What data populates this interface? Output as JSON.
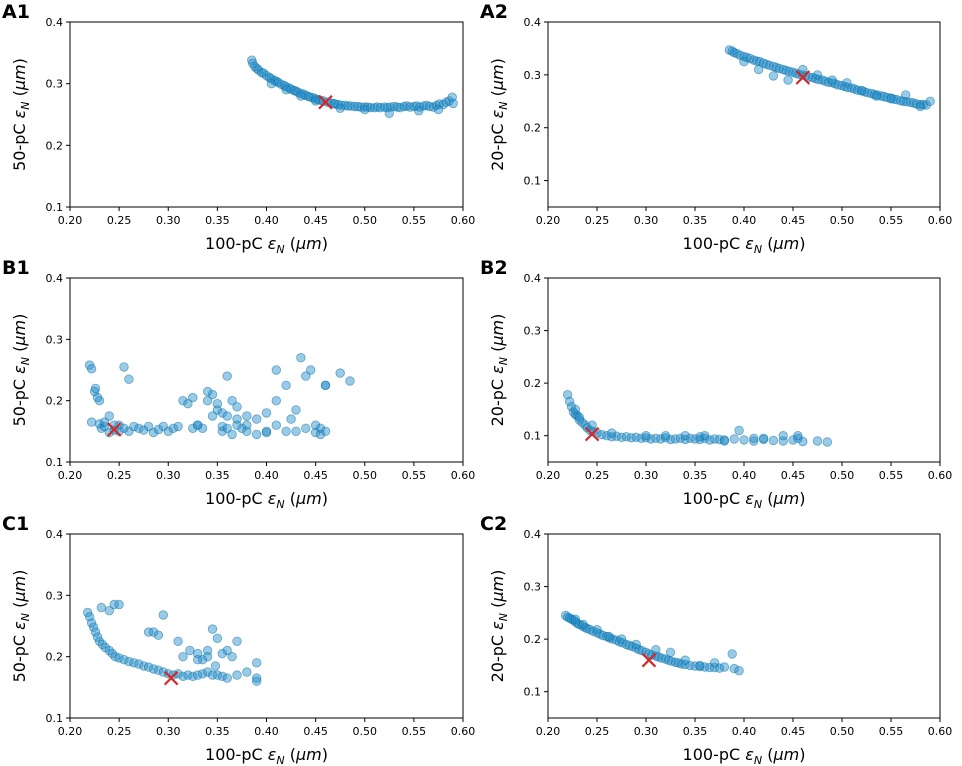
{
  "figure": {
    "marker_color": "#1f8bc7",
    "marker_edge": "#0a6fa8",
    "optimum_color": "#d62728"
  },
  "chart_data": [
    {
      "panel": "A1",
      "type": "scatter",
      "xlabel": "100-pC ε_N (μm)",
      "ylabel": "50-pC ε_N (μm)",
      "xlim": [
        0.2,
        0.6
      ],
      "ylim": [
        0.1,
        0.4
      ],
      "xticks": [
        "0.20",
        "0.25",
        "0.30",
        "0.35",
        "0.40",
        "0.45",
        "0.50",
        "0.55",
        "0.60"
      ],
      "yticks": [
        "0.1",
        "0.2",
        "0.3",
        "0.4"
      ],
      "optimum": [
        0.46,
        0.27
      ],
      "x": [
        0.385,
        0.386,
        0.388,
        0.39,
        0.392,
        0.395,
        0.397,
        0.4,
        0.403,
        0.405,
        0.408,
        0.41,
        0.412,
        0.415,
        0.418,
        0.42,
        0.423,
        0.425,
        0.428,
        0.43,
        0.432,
        0.435,
        0.438,
        0.44,
        0.443,
        0.445,
        0.448,
        0.45,
        0.453,
        0.455,
        0.458,
        0.462,
        0.465,
        0.468,
        0.47,
        0.473,
        0.476,
        0.48,
        0.483,
        0.486,
        0.49,
        0.493,
        0.496,
        0.5,
        0.503,
        0.506,
        0.51,
        0.513,
        0.516,
        0.52,
        0.523,
        0.526,
        0.53,
        0.533,
        0.536,
        0.54,
        0.543,
        0.546,
        0.55,
        0.553,
        0.556,
        0.56,
        0.563,
        0.566,
        0.57,
        0.573,
        0.576,
        0.58,
        0.583,
        0.586,
        0.589,
        0.59,
        0.405,
        0.42,
        0.435,
        0.45,
        0.475,
        0.5,
        0.525,
        0.555,
        0.575
      ],
      "y": [
        0.338,
        0.333,
        0.328,
        0.325,
        0.322,
        0.318,
        0.317,
        0.313,
        0.31,
        0.308,
        0.305,
        0.304,
        0.302,
        0.299,
        0.297,
        0.295,
        0.293,
        0.291,
        0.289,
        0.288,
        0.286,
        0.284,
        0.283,
        0.281,
        0.279,
        0.278,
        0.277,
        0.275,
        0.274,
        0.273,
        0.272,
        0.27,
        0.269,
        0.268,
        0.267,
        0.266,
        0.265,
        0.265,
        0.264,
        0.264,
        0.263,
        0.263,
        0.262,
        0.262,
        0.262,
        0.261,
        0.261,
        0.262,
        0.261,
        0.262,
        0.261,
        0.262,
        0.263,
        0.262,
        0.261,
        0.263,
        0.264,
        0.262,
        0.263,
        0.264,
        0.262,
        0.264,
        0.265,
        0.263,
        0.262,
        0.265,
        0.267,
        0.266,
        0.27,
        0.272,
        0.278,
        0.268,
        0.3,
        0.29,
        0.28,
        0.272,
        0.26,
        0.258,
        0.252,
        0.256,
        0.258
      ]
    },
    {
      "panel": "A2",
      "type": "scatter",
      "xlabel": "100-pC ε_N (μm)",
      "ylabel": "20-pC ε_N (μm)",
      "xlim": [
        0.2,
        0.6
      ],
      "ylim": [
        0.05,
        0.4
      ],
      "xticks": [
        "0.20",
        "0.25",
        "0.30",
        "0.35",
        "0.40",
        "0.45",
        "0.50",
        "0.55",
        "0.60"
      ],
      "yticks": [
        "0.1",
        "0.2",
        "0.3",
        "0.4"
      ],
      "optimum": [
        0.46,
        0.295
      ],
      "x": [
        0.385,
        0.388,
        0.39,
        0.393,
        0.396,
        0.4,
        0.403,
        0.406,
        0.41,
        0.413,
        0.416,
        0.42,
        0.423,
        0.426,
        0.43,
        0.433,
        0.436,
        0.44,
        0.443,
        0.446,
        0.45,
        0.453,
        0.456,
        0.46,
        0.463,
        0.466,
        0.47,
        0.473,
        0.476,
        0.48,
        0.483,
        0.486,
        0.49,
        0.493,
        0.496,
        0.5,
        0.503,
        0.506,
        0.51,
        0.513,
        0.516,
        0.52,
        0.523,
        0.526,
        0.53,
        0.533,
        0.536,
        0.54,
        0.543,
        0.546,
        0.55,
        0.553,
        0.556,
        0.56,
        0.563,
        0.566,
        0.57,
        0.573,
        0.576,
        0.58,
        0.583,
        0.586,
        0.59,
        0.4,
        0.415,
        0.43,
        0.445,
        0.46,
        0.475,
        0.49,
        0.505,
        0.52,
        0.535,
        0.55,
        0.565,
        0.58
      ],
      "y": [
        0.347,
        0.345,
        0.342,
        0.34,
        0.337,
        0.335,
        0.333,
        0.331,
        0.328,
        0.326,
        0.325,
        0.322,
        0.32,
        0.318,
        0.316,
        0.314,
        0.312,
        0.31,
        0.308,
        0.307,
        0.305,
        0.303,
        0.301,
        0.3,
        0.298,
        0.296,
        0.295,
        0.293,
        0.291,
        0.29,
        0.288,
        0.286,
        0.285,
        0.283,
        0.281,
        0.28,
        0.278,
        0.276,
        0.275,
        0.273,
        0.271,
        0.27,
        0.268,
        0.266,
        0.265,
        0.263,
        0.262,
        0.26,
        0.259,
        0.257,
        0.256,
        0.254,
        0.253,
        0.251,
        0.25,
        0.249,
        0.248,
        0.247,
        0.245,
        0.244,
        0.244,
        0.243,
        0.25,
        0.325,
        0.31,
        0.298,
        0.29,
        0.31,
        0.3,
        0.29,
        0.285,
        0.27,
        0.26,
        0.255,
        0.262,
        0.24
      ]
    },
    {
      "panel": "B1",
      "type": "scatter",
      "xlabel": "100-pC ε_N (μm)",
      "ylabel": "50-pC ε_N (μm)",
      "xlim": [
        0.2,
        0.6
      ],
      "ylim": [
        0.1,
        0.4
      ],
      "xticks": [
        "0.20",
        "0.25",
        "0.30",
        "0.35",
        "0.40",
        "0.45",
        "0.50",
        "0.55",
        "0.60"
      ],
      "yticks": [
        "0.1",
        "0.2",
        "0.3",
        "0.4"
      ],
      "optimum": [
        0.245,
        0.153
      ],
      "x": [
        0.22,
        0.222,
        0.225,
        0.228,
        0.23,
        0.232,
        0.235,
        0.24,
        0.245,
        0.25,
        0.255,
        0.26,
        0.265,
        0.27,
        0.275,
        0.28,
        0.285,
        0.29,
        0.295,
        0.3,
        0.305,
        0.31,
        0.222,
        0.226,
        0.23,
        0.235,
        0.24,
        0.245,
        0.25,
        0.255,
        0.26,
        0.315,
        0.32,
        0.325,
        0.33,
        0.335,
        0.34,
        0.345,
        0.35,
        0.355,
        0.36,
        0.365,
        0.37,
        0.375,
        0.38,
        0.39,
        0.4,
        0.41,
        0.42,
        0.43,
        0.44,
        0.45,
        0.46,
        0.325,
        0.33,
        0.34,
        0.345,
        0.35,
        0.355,
        0.36,
        0.37,
        0.38,
        0.39,
        0.4,
        0.41,
        0.42,
        0.43,
        0.435,
        0.44,
        0.45,
        0.455,
        0.46,
        0.475,
        0.485,
        0.355,
        0.36,
        0.365,
        0.37,
        0.38,
        0.4,
        0.41,
        0.425,
        0.445,
        0.455,
        0.46
      ],
      "y": [
        0.258,
        0.165,
        0.215,
        0.205,
        0.162,
        0.155,
        0.158,
        0.148,
        0.152,
        0.16,
        0.155,
        0.15,
        0.158,
        0.155,
        0.152,
        0.158,
        0.148,
        0.153,
        0.158,
        0.15,
        0.155,
        0.158,
        0.252,
        0.22,
        0.2,
        0.165,
        0.175,
        0.16,
        0.15,
        0.255,
        0.235,
        0.2,
        0.195,
        0.205,
        0.16,
        0.155,
        0.2,
        0.21,
        0.185,
        0.158,
        0.24,
        0.2,
        0.17,
        0.155,
        0.16,
        0.17,
        0.18,
        0.2,
        0.15,
        0.185,
        0.155,
        0.16,
        0.225,
        0.155,
        0.16,
        0.215,
        0.175,
        0.195,
        0.15,
        0.155,
        0.19,
        0.175,
        0.145,
        0.148,
        0.25,
        0.225,
        0.15,
        0.27,
        0.24,
        0.148,
        0.155,
        0.225,
        0.245,
        0.232,
        0.18,
        0.175,
        0.145,
        0.16,
        0.15,
        0.15,
        0.16,
        0.17,
        0.25,
        0.145,
        0.15
      ]
    },
    {
      "panel": "B2",
      "type": "scatter",
      "xlabel": "100-pC ε_N (μm)",
      "ylabel": "20-pC ε_N (μm)",
      "xlim": [
        0.2,
        0.6
      ],
      "ylim": [
        0.05,
        0.4
      ],
      "xticks": [
        "0.20",
        "0.25",
        "0.30",
        "0.35",
        "0.40",
        "0.45",
        "0.50",
        "0.55",
        "0.60"
      ],
      "yticks": [
        "0.1",
        "0.2",
        "0.3",
        "0.4"
      ],
      "optimum": [
        0.245,
        0.103
      ],
      "x": [
        0.22,
        0.222,
        0.224,
        0.226,
        0.228,
        0.23,
        0.232,
        0.235,
        0.238,
        0.24,
        0.243,
        0.246,
        0.25,
        0.255,
        0.26,
        0.265,
        0.27,
        0.275,
        0.28,
        0.285,
        0.29,
        0.295,
        0.3,
        0.305,
        0.31,
        0.315,
        0.32,
        0.325,
        0.33,
        0.335,
        0.34,
        0.345,
        0.35,
        0.355,
        0.36,
        0.365,
        0.37,
        0.375,
        0.38,
        0.39,
        0.4,
        0.41,
        0.42,
        0.43,
        0.44,
        0.45,
        0.46,
        0.475,
        0.485,
        0.228,
        0.232,
        0.245,
        0.265,
        0.3,
        0.34,
        0.355,
        0.395,
        0.41,
        0.44,
        0.455,
        0.32,
        0.36,
        0.38,
        0.42,
        0.455
      ],
      "y": [
        0.178,
        0.165,
        0.155,
        0.145,
        0.14,
        0.138,
        0.13,
        0.125,
        0.12,
        0.115,
        0.11,
        0.108,
        0.105,
        0.102,
        0.1,
        0.098,
        0.099,
        0.097,
        0.098,
        0.096,
        0.097,
        0.095,
        0.096,
        0.094,
        0.095,
        0.094,
        0.096,
        0.093,
        0.094,
        0.095,
        0.093,
        0.095,
        0.094,
        0.093,
        0.095,
        0.092,
        0.094,
        0.093,
        0.092,
        0.094,
        0.092,
        0.09,
        0.093,
        0.091,
        0.09,
        0.092,
        0.089,
        0.09,
        0.088,
        0.15,
        0.135,
        0.12,
        0.105,
        0.1,
        0.1,
        0.098,
        0.11,
        0.095,
        0.1,
        0.095,
        0.1,
        0.1,
        0.09,
        0.095,
        0.1
      ]
    },
    {
      "panel": "C1",
      "type": "scatter",
      "xlabel": "100-pC ε_N (μm)",
      "ylabel": "50-pC ε_N (μm)",
      "xlim": [
        0.2,
        0.6
      ],
      "ylim": [
        0.1,
        0.4
      ],
      "xticks": [
        "0.20",
        "0.25",
        "0.30",
        "0.35",
        "0.40",
        "0.45",
        "0.50",
        "0.55",
        "0.60"
      ],
      "yticks": [
        "0.1",
        "0.2",
        "0.3",
        "0.4"
      ],
      "optimum": [
        0.303,
        0.165
      ],
      "x": [
        0.218,
        0.22,
        0.222,
        0.224,
        0.226,
        0.228,
        0.23,
        0.233,
        0.236,
        0.24,
        0.243,
        0.246,
        0.25,
        0.255,
        0.26,
        0.265,
        0.27,
        0.275,
        0.28,
        0.285,
        0.29,
        0.295,
        0.3,
        0.305,
        0.31,
        0.315,
        0.32,
        0.325,
        0.33,
        0.335,
        0.34,
        0.345,
        0.35,
        0.355,
        0.36,
        0.37,
        0.38,
        0.39,
        0.232,
        0.24,
        0.245,
        0.25,
        0.28,
        0.285,
        0.29,
        0.295,
        0.31,
        0.315,
        0.33,
        0.335,
        0.34,
        0.345,
        0.35,
        0.36,
        0.365,
        0.37,
        0.39,
        0.39,
        0.322,
        0.33,
        0.34,
        0.348,
        0.355
      ],
      "y": [
        0.272,
        0.265,
        0.255,
        0.248,
        0.24,
        0.232,
        0.225,
        0.22,
        0.215,
        0.21,
        0.205,
        0.2,
        0.198,
        0.195,
        0.192,
        0.19,
        0.188,
        0.185,
        0.183,
        0.18,
        0.178,
        0.175,
        0.172,
        0.17,
        0.172,
        0.168,
        0.17,
        0.168,
        0.17,
        0.172,
        0.175,
        0.17,
        0.17,
        0.168,
        0.165,
        0.17,
        0.175,
        0.16,
        0.28,
        0.275,
        0.285,
        0.285,
        0.24,
        0.24,
        0.235,
        0.268,
        0.225,
        0.2,
        0.205,
        0.195,
        0.21,
        0.245,
        0.23,
        0.21,
        0.2,
        0.225,
        0.19,
        0.165,
        0.21,
        0.195,
        0.2,
        0.185,
        0.205
      ]
    },
    {
      "panel": "C2",
      "type": "scatter",
      "xlabel": "100-pC ε_N (μm)",
      "ylabel": "20-pC ε_N (μm)",
      "xlim": [
        0.2,
        0.6
      ],
      "ylim": [
        0.05,
        0.4
      ],
      "xticks": [
        "0.20",
        "0.25",
        "0.30",
        "0.35",
        "0.40",
        "0.45",
        "0.50",
        "0.55",
        "0.60"
      ],
      "yticks": [
        "0.1",
        "0.2",
        "0.3",
        "0.4"
      ],
      "optimum": [
        0.303,
        0.16
      ],
      "x": [
        0.218,
        0.22,
        0.222,
        0.224,
        0.226,
        0.228,
        0.23,
        0.232,
        0.235,
        0.238,
        0.24,
        0.243,
        0.246,
        0.25,
        0.253,
        0.256,
        0.26,
        0.263,
        0.266,
        0.27,
        0.273,
        0.276,
        0.28,
        0.283,
        0.286,
        0.29,
        0.293,
        0.296,
        0.3,
        0.303,
        0.306,
        0.31,
        0.313,
        0.316,
        0.32,
        0.323,
        0.326,
        0.33,
        0.333,
        0.336,
        0.34,
        0.345,
        0.35,
        0.355,
        0.36,
        0.365,
        0.37,
        0.375,
        0.38,
        0.39,
        0.395,
        0.228,
        0.236,
        0.25,
        0.262,
        0.275,
        0.29,
        0.31,
        0.325,
        0.34,
        0.355,
        0.37,
        0.388
      ],
      "y": [
        0.245,
        0.242,
        0.24,
        0.238,
        0.236,
        0.233,
        0.23,
        0.228,
        0.225,
        0.222,
        0.22,
        0.218,
        0.215,
        0.212,
        0.21,
        0.207,
        0.205,
        0.202,
        0.2,
        0.198,
        0.195,
        0.193,
        0.19,
        0.188,
        0.186,
        0.183,
        0.18,
        0.178,
        0.175,
        0.172,
        0.17,
        0.168,
        0.166,
        0.164,
        0.162,
        0.16,
        0.158,
        0.156,
        0.155,
        0.153,
        0.152,
        0.15,
        0.149,
        0.148,
        0.147,
        0.146,
        0.146,
        0.145,
        0.147,
        0.144,
        0.14,
        0.238,
        0.228,
        0.218,
        0.205,
        0.2,
        0.19,
        0.18,
        0.175,
        0.16,
        0.15,
        0.155,
        0.172
      ]
    }
  ]
}
